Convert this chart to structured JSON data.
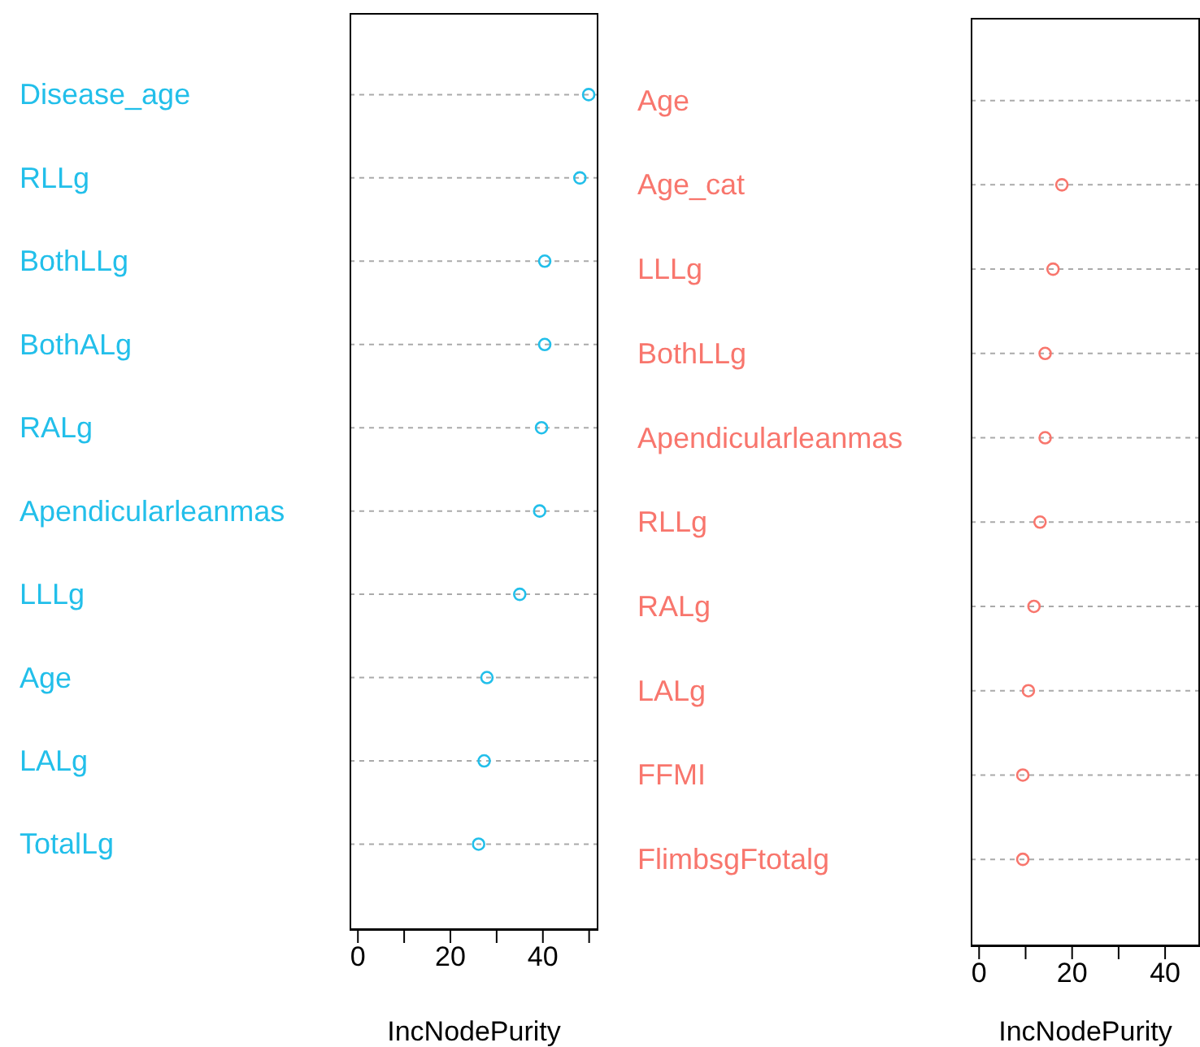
{
  "chart_data": [
    {
      "type": "scatter",
      "orientation": "horizontal",
      "categories": [
        "Disease_age",
        "RLLg",
        "BothLLg",
        "BothALg",
        "RALg",
        "Apendicularleanmas",
        "LLLg",
        "Age",
        "LALg",
        "TotalLg"
      ],
      "values": [
        49.9,
        48.0,
        40.4,
        40.4,
        39.7,
        39.3,
        35.0,
        27.9,
        27.3,
        26.1
      ],
      "color": "#22bfea",
      "xlim": [
        -1.8,
        52
      ],
      "xticks": [
        0,
        {
          "value": 10,
          "label": null
        },
        20,
        {
          "value": 30,
          "label": null
        },
        40,
        {
          "value": 50,
          "label": null
        }
      ],
      "xlabel": "IncNodePurity",
      "grid": "y",
      "marker": "circle"
    },
    {
      "type": "scatter",
      "orientation": "horizontal",
      "categories": [
        "Age",
        "Age_cat",
        "LLLg",
        "BothLLg",
        "Apendicularleanmas",
        "RLLg",
        "RALg",
        "LALg",
        "FFMI",
        "FlimbsgFtotalg"
      ],
      "values": [
        null,
        17.8,
        15.9,
        14.2,
        14.2,
        13.1,
        11.8,
        10.6,
        9.4,
        9.4
      ],
      "color": "#f8766d",
      "xlim": [
        -1.8,
        47.5
      ],
      "xticks": [
        0,
        {
          "value": 10,
          "label": null
        },
        20,
        {
          "value": 30,
          "label": null
        },
        40
      ],
      "xlabel": "IncNodePurity",
      "grid": "y",
      "marker": "circle"
    }
  ]
}
